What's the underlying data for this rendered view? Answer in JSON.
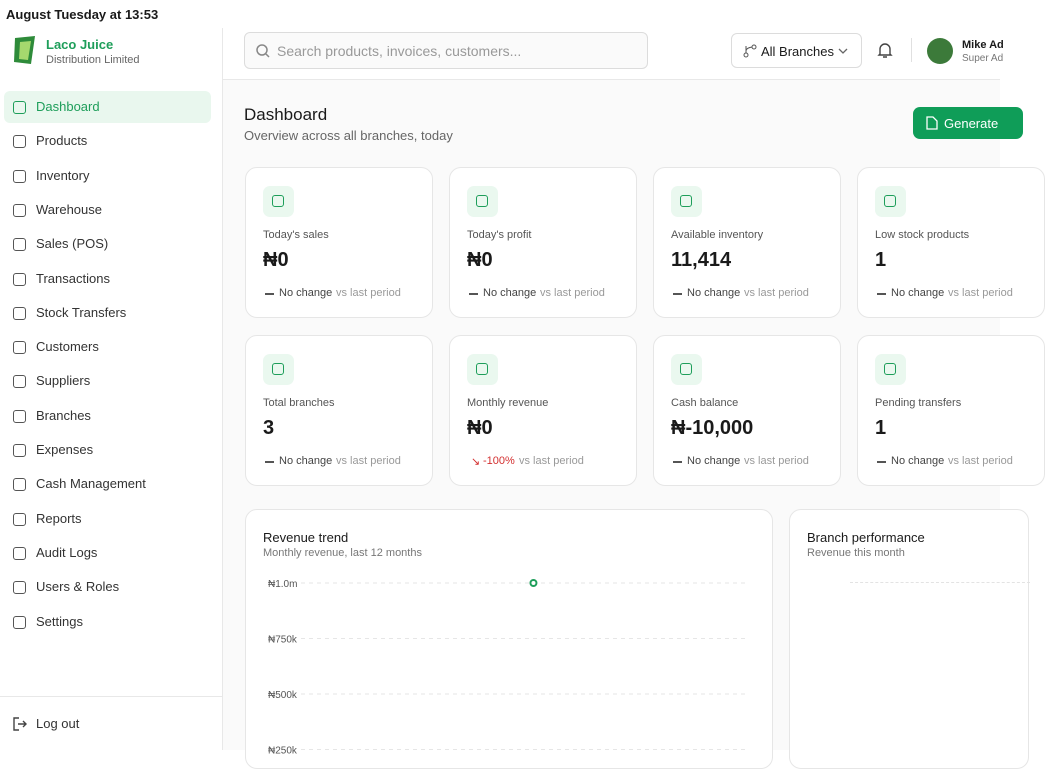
{
  "status_bar": {
    "time": "August Tuesday at 13:53"
  },
  "brand": {
    "name": "Laco Juice",
    "subtitle": "Distribution Limited"
  },
  "search": {
    "placeholder": "Search products, invoices, customers..."
  },
  "branch_selector": "All Branches",
  "user": {
    "name": "Mike Ad",
    "role": "Super Ad"
  },
  "nav": [
    "Dashboard",
    "Products",
    "Inventory",
    "Warehouse",
    "Sales (POS)",
    "Transactions",
    "Stock Transfers",
    "Customers",
    "Suppliers",
    "Branches",
    "Expenses",
    "Cash Management",
    "Reports",
    "Audit Logs",
    "Users & Roles",
    "Settings"
  ],
  "active_nav": 0,
  "logout": "Log out",
  "page": {
    "title": "Dashboard",
    "subtitle": "Overview across all branches, today",
    "action": "Generate"
  },
  "stats": [
    {
      "label": "Today's sales",
      "value": "₦0",
      "change": "No change",
      "suffix": "vs last period"
    },
    {
      "label": "Today's profit",
      "value": "₦0",
      "change": "No change",
      "suffix": "vs last period"
    },
    {
      "label": "Available inventory",
      "value": "11,414",
      "change": "No change",
      "suffix": "vs last period"
    },
    {
      "label": "Low stock products",
      "value": "1",
      "change": "No change",
      "suffix": "vs last period"
    },
    {
      "label": "Total branches",
      "value": "3",
      "change": "No change",
      "suffix": "vs last period"
    },
    {
      "label": "Monthly revenue",
      "value": "₦0",
      "change": "-100%",
      "suffix": "vs last period",
      "trend": "down"
    },
    {
      "label": "Cash balance",
      "value": "₦-10,000",
      "change": "No change",
      "suffix": "vs last period"
    },
    {
      "label": "Pending transfers",
      "value": "1",
      "change": "No change",
      "suffix": "vs last period"
    }
  ],
  "revenue_chart": {
    "type": "line",
    "title": "Revenue trend",
    "subtitle": "Monthly revenue, last 12 months",
    "ylim": [
      0,
      1000000
    ],
    "yticks": [
      {
        "value": 1000000,
        "label": "₦1.0m"
      },
      {
        "value": 750000,
        "label": "₦750k"
      },
      {
        "value": 500000,
        "label": "₦500k"
      },
      {
        "value": 250000,
        "label": "₦250k"
      }
    ],
    "values": [
      null,
      null,
      null,
      null,
      null,
      null,
      1000000,
      null,
      null,
      null,
      null,
      null
    ],
    "color": "#1e9e5a"
  },
  "branch_chart": {
    "title": "Branch performance",
    "subtitle": "Revenue this month"
  }
}
